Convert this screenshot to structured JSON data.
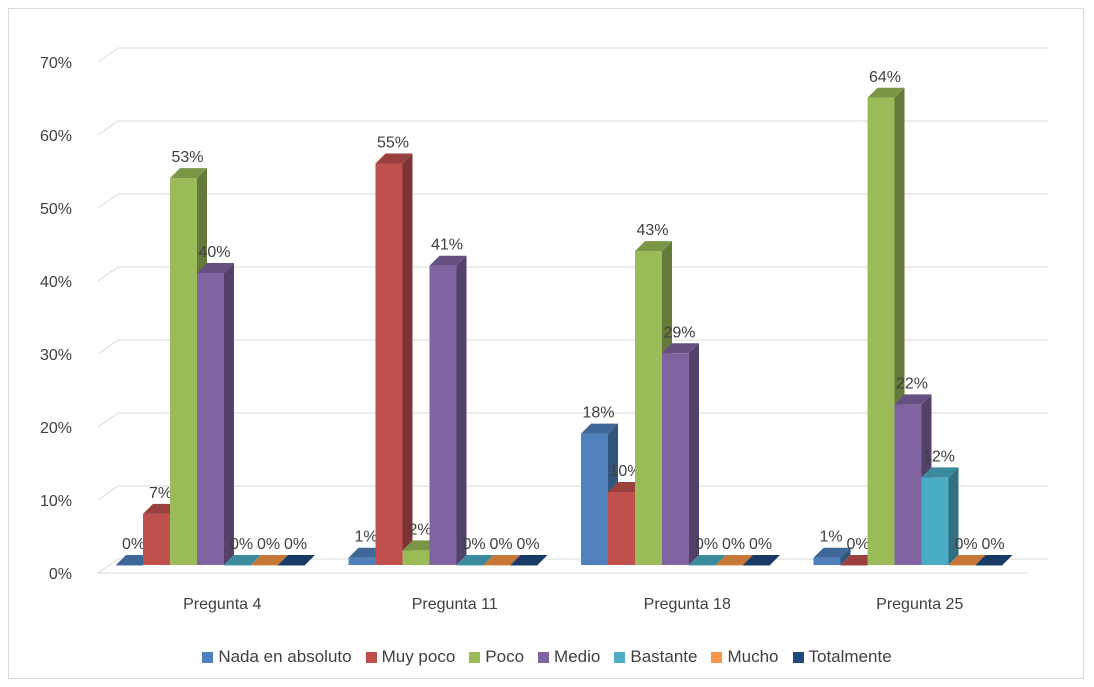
{
  "chart_data": {
    "type": "bar",
    "categories": [
      "Pregunta 4",
      "Pregunta 11",
      "Pregunta 18",
      "Pregunta 25"
    ],
    "series": [
      {
        "name": "Nada en absoluto",
        "color": "#4f81bd",
        "values": [
          0,
          1,
          18,
          1
        ],
        "labels": [
          "0%",
          "1%",
          "18%",
          "1%"
        ]
      },
      {
        "name": "Muy poco",
        "color": "#c0504d",
        "values": [
          7,
          55,
          10,
          0
        ],
        "labels": [
          "7%",
          "55%",
          "10%",
          "0%"
        ]
      },
      {
        "name": "Poco",
        "color": "#9bbb59",
        "values": [
          53,
          2,
          43,
          64
        ],
        "labels": [
          "53%",
          "2%",
          "43%",
          "64%"
        ]
      },
      {
        "name": "Medio",
        "color": "#8064a2",
        "values": [
          40,
          41,
          29,
          22
        ],
        "labels": [
          "40%",
          "41%",
          "29%",
          "22%"
        ]
      },
      {
        "name": "Bastante",
        "color": "#4bacc6",
        "values": [
          0,
          0,
          0,
          12
        ],
        "labels": [
          "0%",
          "0%",
          "0%",
          "12%"
        ]
      },
      {
        "name": "Mucho",
        "color": "#f79646",
        "values": [
          0,
          0,
          0,
          0
        ],
        "labels": [
          "0%",
          "0%",
          "0%",
          "0%"
        ]
      },
      {
        "name": "Totalmente",
        "color": "#1f497d",
        "values": [
          0,
          0,
          0,
          0
        ],
        "labels": [
          "0%",
          "0%",
          "0%",
          "0%"
        ]
      }
    ],
    "y_ticks": [
      "0%",
      "10%",
      "20%",
      "30%",
      "40%",
      "50%",
      "60%",
      "70%"
    ],
    "ylim": [
      0,
      70
    ],
    "grid": true,
    "legend_position": "bottom",
    "title": "",
    "xlabel": "",
    "ylabel": ""
  }
}
